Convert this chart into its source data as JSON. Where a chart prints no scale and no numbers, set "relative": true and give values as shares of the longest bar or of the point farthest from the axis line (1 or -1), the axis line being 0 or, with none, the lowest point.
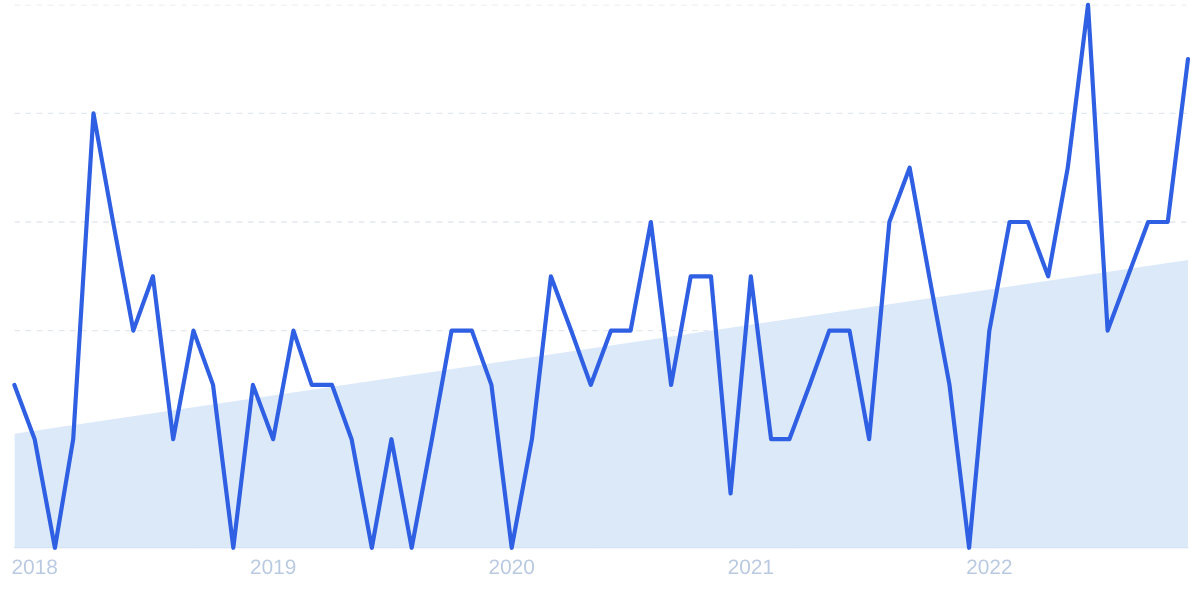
{
  "chart_data": {
    "type": "line",
    "relative": true,
    "x": [
      "2017-12",
      "2018-01",
      "2018-02",
      "2018-03",
      "2018-04",
      "2018-05",
      "2018-06",
      "2018-07",
      "2018-08",
      "2018-09",
      "2018-10",
      "2018-11",
      "2018-12",
      "2019-01",
      "2019-02",
      "2019-03",
      "2019-04",
      "2019-05",
      "2019-06",
      "2019-07",
      "2019-08",
      "2019-09",
      "2019-10",
      "2019-11",
      "2019-12",
      "2020-01",
      "2020-02",
      "2020-03",
      "2020-04",
      "2020-05",
      "2020-06",
      "2020-07",
      "2020-08",
      "2020-09",
      "2020-10",
      "2020-11",
      "2020-12",
      "2021-01",
      "2021-02",
      "2021-03",
      "2021-04",
      "2021-05",
      "2021-06",
      "2021-07",
      "2021-08",
      "2021-09",
      "2021-10",
      "2021-11",
      "2021-12",
      "2022-01",
      "2022-02",
      "2022-03",
      "2022-04",
      "2022-05",
      "2022-06",
      "2022-07",
      "2022-08",
      "2022-09",
      "2022-10",
      "2022-11"
    ],
    "series": [
      {
        "type": "area",
        "color": "#dce9f9",
        "x": [
          "2017-12",
          "2022-11"
        ],
        "values": [
          0.21,
          0.53
        ]
      },
      {
        "color": "#2f5fe3",
        "values": [
          0.3,
          0.2,
          0,
          0.2,
          0.8,
          0.6,
          0.4,
          0.5,
          0.2,
          0.4,
          0.3,
          0,
          0.3,
          0.2,
          0.4,
          0.3,
          0.3,
          0.2,
          0,
          0.2,
          0,
          0.2,
          0.4,
          0.4,
          0.3,
          0,
          0.2,
          0.5,
          0.4,
          0.3,
          0.4,
          0.4,
          0.6,
          0.3,
          0.5,
          0.5,
          0.1,
          0.5,
          0.2,
          0.2,
          0.3,
          0.4,
          0.4,
          0.2,
          0.6,
          0.7,
          0.5,
          0.3,
          0,
          0.4,
          0.6,
          0.6,
          0.5,
          0.7,
          1,
          0.4,
          0.5,
          0.6,
          0.6,
          0.9
        ]
      }
    ],
    "xlim": [
      "2017-12",
      "2022-11"
    ],
    "xticks": [
      {
        "value": "2018-01",
        "label": "2018"
      },
      {
        "value": "2019-01",
        "label": "2019"
      },
      {
        "value": "2020-01",
        "label": "2020"
      },
      {
        "value": "2021-01",
        "label": "2021"
      },
      {
        "value": "2022-01",
        "label": "2022"
      }
    ],
    "grid": "y",
    "tick_labels": "x"
  }
}
